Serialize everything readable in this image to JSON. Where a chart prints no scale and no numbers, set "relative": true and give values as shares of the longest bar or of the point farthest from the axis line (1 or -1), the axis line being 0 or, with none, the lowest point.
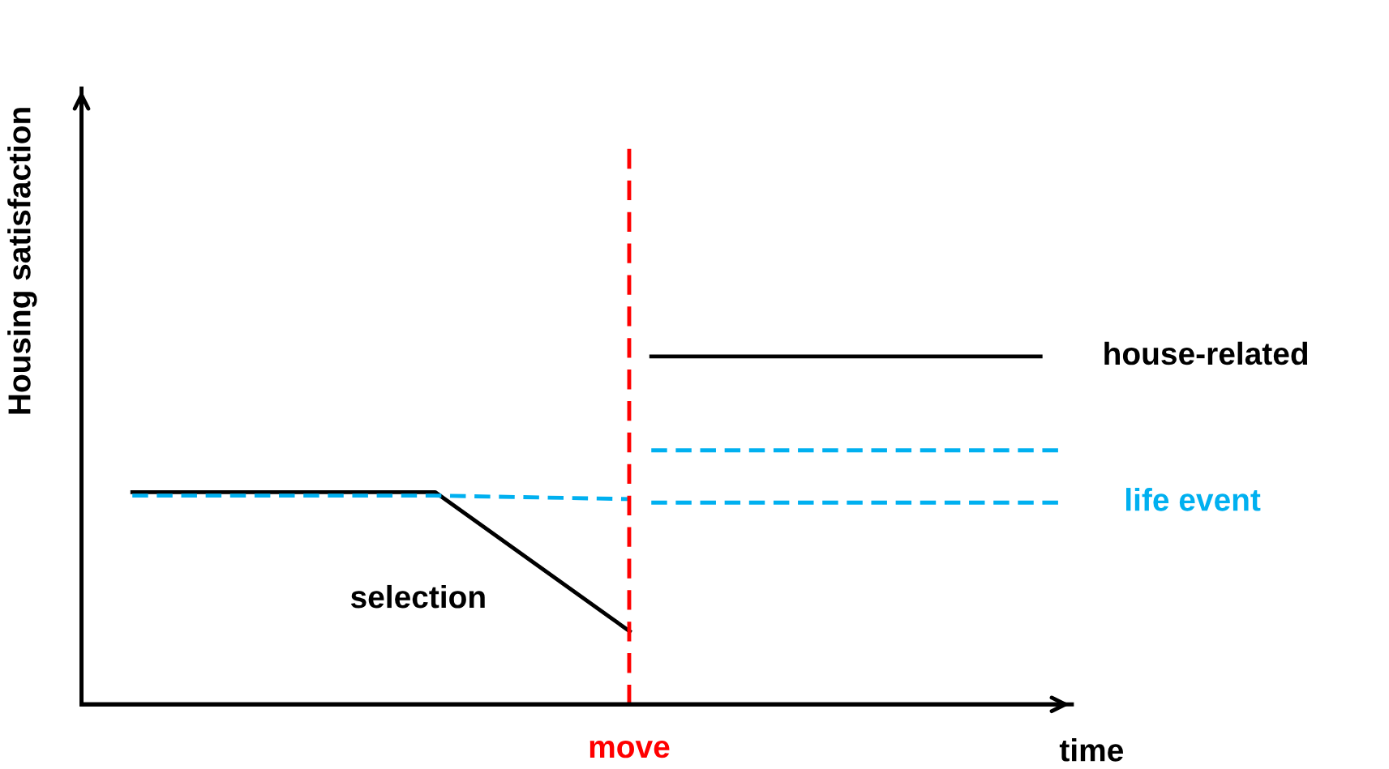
{
  "chart_data": {
    "type": "line",
    "relative": true,
    "xlabel": "time",
    "ylabel": "Housing satisfaction",
    "marker": "none",
    "categories": [
      null,
      null,
      null,
      null,
      null,
      null,
      null,
      null,
      null,
      null,
      null,
      null,
      null,
      null,
      null,
      null,
      null,
      null,
      null,
      null,
      null,
      null,
      null,
      null,
      null,
      null,
      null,
      null,
      null,
      null,
      null,
      null,
      null,
      null,
      null,
      null,
      null,
      null,
      null,
      null,
      null,
      null,
      null,
      null,
      null
    ],
    "series": [
      {
        "color": "#000000",
        "line_style": "solid",
        "values": [
          null,
          0.61,
          null,
          null,
          null,
          null,
          null,
          null,
          null,
          null,
          null,
          null,
          null,
          null,
          null,
          0.61,
          null,
          null,
          null,
          null,
          null,
          null,
          null,
          null,
          0.21,
          null,
          null,
          null,
          null,
          null,
          null,
          null,
          null,
          null,
          null,
          null,
          null,
          null,
          null,
          null,
          null,
          null,
          null,
          null,
          null
        ]
      },
      {
        "name": "house-related",
        "color": "#000000",
        "line_style": "solid",
        "values": [
          null,
          null,
          null,
          null,
          null,
          null,
          null,
          null,
          null,
          null,
          null,
          null,
          null,
          null,
          null,
          null,
          null,
          null,
          null,
          null,
          null,
          null,
          null,
          null,
          null,
          1,
          null,
          null,
          null,
          null,
          null,
          null,
          null,
          null,
          null,
          null,
          null,
          null,
          null,
          null,
          null,
          null,
          null,
          1,
          null
        ]
      },
      {
        "color": "#00b0f0",
        "line_style": "dashed",
        "values": [
          null,
          0.6,
          null,
          null,
          null,
          null,
          null,
          null,
          null,
          null,
          null,
          null,
          null,
          null,
          null,
          0.6,
          null,
          null,
          null,
          null,
          null,
          null,
          null,
          null,
          0.59,
          null,
          null,
          null,
          null,
          null,
          null,
          null,
          null,
          null,
          null,
          null,
          null,
          null,
          null,
          null,
          null,
          null,
          null,
          null,
          null
        ]
      },
      {
        "color": "#00b0f0",
        "line_style": "dashed",
        "values": [
          null,
          null,
          null,
          null,
          null,
          null,
          null,
          null,
          null,
          null,
          null,
          null,
          null,
          null,
          null,
          null,
          null,
          null,
          null,
          null,
          null,
          null,
          null,
          null,
          null,
          0.73,
          null,
          null,
          null,
          null,
          null,
          null,
          null,
          null,
          null,
          null,
          null,
          null,
          null,
          null,
          null,
          null,
          null,
          null,
          0.73
        ]
      },
      {
        "name": "life event",
        "color": "#00b0f0",
        "line_style": "dashed",
        "values": [
          null,
          null,
          null,
          null,
          null,
          null,
          null,
          null,
          null,
          null,
          null,
          null,
          null,
          null,
          null,
          null,
          null,
          null,
          null,
          null,
          null,
          null,
          null,
          null,
          null,
          0.58,
          null,
          null,
          null,
          null,
          null,
          null,
          null,
          null,
          null,
          null,
          null,
          null,
          null,
          null,
          null,
          null,
          null,
          null,
          0.58
        ]
      }
    ],
    "ref_lines": [
      {
        "axis": "x",
        "label": "move",
        "color": "#ff0000",
        "line_style": "dashed"
      }
    ],
    "annotations": [
      "selection"
    ]
  }
}
